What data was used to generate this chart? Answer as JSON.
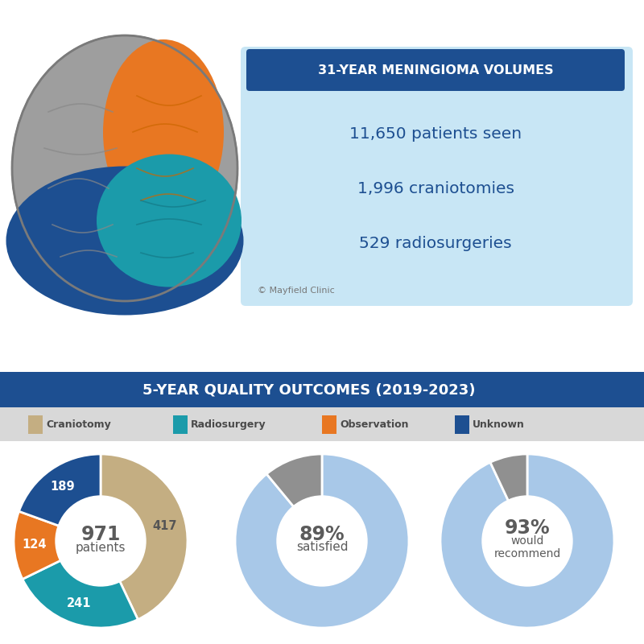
{
  "title_top": "31-YEAR MENINGIOMA VOLUMES",
  "stats": [
    "11,650 patients seen",
    "1,996 craniotomies",
    "529 radiosurgeries"
  ],
  "copyright": "© Mayfield Clinic",
  "section2_title": "5-YEAR QUALITY OUTCOMES (2019-2023)",
  "legend_items": [
    {
      "label": "Craniotomy",
      "color": "#C4AE82"
    },
    {
      "label": "Radiosurgery",
      "color": "#1B9BAA"
    },
    {
      "label": "Observation",
      "color": "#E87722"
    },
    {
      "label": "Unknown",
      "color": "#1D4F91"
    }
  ],
  "donut1": {
    "values": [
      417,
      241,
      124,
      189
    ],
    "colors": [
      "#C4AE82",
      "#1B9BAA",
      "#E87722",
      "#1D4F91"
    ],
    "labels": [
      "417",
      "241",
      "124",
      "189"
    ],
    "label_colors": [
      "#555555",
      "#ffffff",
      "#ffffff",
      "#ffffff"
    ],
    "center_text_line1": "971",
    "center_text_line2": "patients",
    "center_color": "#5B5B5B"
  },
  "donut2": {
    "values": [
      89,
      11
    ],
    "colors": [
      "#A8C8E8",
      "#909090"
    ],
    "center_pct": "89%",
    "center_color": "#5B5B5B"
  },
  "donut3": {
    "values": [
      93,
      7
    ],
    "colors": [
      "#A8C8E8",
      "#909090"
    ],
    "center_pct": "93%",
    "center_color": "#5B5B5B"
  },
  "bg_color": "#FFFFFF",
  "info_box_color": "#C8E6F5",
  "header_color": "#1D4F91",
  "section2_bg": "#1D4F91",
  "legend_bar_color": "#D0D0D0"
}
